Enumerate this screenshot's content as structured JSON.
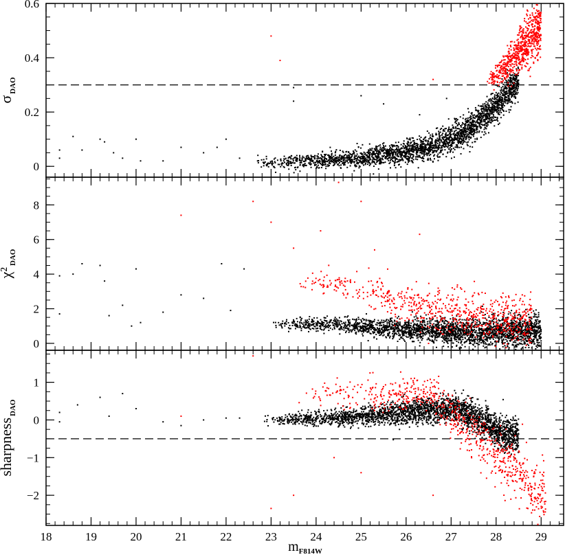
{
  "chart_data": [
    {
      "type": "scatter",
      "panel": "top",
      "ylabel": {
        "symbol": "σ",
        "subscript": "DAO"
      },
      "ylim": [
        -0.04,
        0.6
      ],
      "yticks": [
        "0",
        "0.2",
        "0.4",
        "0.6"
      ],
      "threshold": {
        "y": 0.3,
        "style": "dashed"
      },
      "series": [
        {
          "color": "#000000",
          "points": [
            [
              18.3,
              0.06
            ],
            [
              18.3,
              0.03
            ],
            [
              18.6,
              0.11
            ],
            [
              18.8,
              0.06
            ],
            [
              19.2,
              0.1
            ],
            [
              19.3,
              0.09
            ],
            [
              19.5,
              0.05
            ],
            [
              19.7,
              0.03
            ],
            [
              20.0,
              0.1
            ],
            [
              20.1,
              0.02
            ],
            [
              20.6,
              0.02
            ],
            [
              21.0,
              0.07
            ],
            [
              21.5,
              0.05
            ],
            [
              21.8,
              0.07
            ],
            [
              22.0,
              0.1
            ],
            [
              22.3,
              0.03
            ],
            [
              22.7,
              0.02
            ],
            [
              23.5,
              0.29
            ],
            [
              23.5,
              0.24
            ],
            [
              24.2,
              0.03
            ],
            [
              25.0,
              0.26
            ],
            [
              25.5,
              0.23
            ],
            [
              26.3,
              0.19
            ],
            [
              26.9,
              0.25
            ]
          ],
          "cloud": [
            {
              "x": 23.0,
              "y": 0.015
            },
            {
              "x": 24.0,
              "y": 0.02
            },
            {
              "x": 25.0,
              "y": 0.03
            },
            {
              "x": 25.8,
              "y": 0.045
            },
            {
              "x": 26.5,
              "y": 0.07
            },
            {
              "x": 27.0,
              "y": 0.1
            },
            {
              "x": 27.5,
              "y": 0.15
            },
            {
              "x": 28.0,
              "y": 0.22
            },
            {
              "x": 28.4,
              "y": 0.3
            }
          ],
          "range": [
            22.6,
            28.5
          ]
        },
        {
          "color": "#ff0000",
          "points": [
            [
              23.0,
              0.48
            ],
            [
              23.2,
              0.39
            ],
            [
              26.6,
              0.32
            ]
          ],
          "cloud": [
            {
              "x": 27.9,
              "y": 0.32
            },
            {
              "x": 28.2,
              "y": 0.36
            },
            {
              "x": 28.5,
              "y": 0.42
            },
            {
              "x": 28.8,
              "y": 0.48
            },
            {
              "x": 29.0,
              "y": 0.52
            }
          ],
          "range": [
            27.8,
            29.0
          ]
        }
      ]
    },
    {
      "type": "scatter",
      "panel": "middle",
      "ylabel": {
        "symbol": "χ²",
        "subscript": "DAO"
      },
      "ylim": [
        -0.4,
        9.6
      ],
      "yticks": [
        "0",
        "2",
        "4",
        "6",
        "8"
      ],
      "series": [
        {
          "color": "#000000",
          "points": [
            [
              18.3,
              3.9
            ],
            [
              18.3,
              1.7
            ],
            [
              18.6,
              4.0
            ],
            [
              18.8,
              4.6
            ],
            [
              19.2,
              4.5
            ],
            [
              19.3,
              3.6
            ],
            [
              19.4,
              1.6
            ],
            [
              19.7,
              2.2
            ],
            [
              19.9,
              1.0
            ],
            [
              20.0,
              4.3
            ],
            [
              20.1,
              1.2
            ],
            [
              20.6,
              1.8
            ],
            [
              21.0,
              2.8
            ],
            [
              21.5,
              2.6
            ],
            [
              21.9,
              4.6
            ],
            [
              22.1,
              1.9
            ],
            [
              22.4,
              4.3
            ]
          ],
          "cloud": [
            {
              "x": 24.5,
              "y": 1.1
            },
            {
              "x": 25.5,
              "y": 0.9
            },
            {
              "x": 26.5,
              "y": 0.7
            },
            {
              "x": 27.5,
              "y": 0.6
            },
            {
              "x": 28.5,
              "y": 0.7
            }
          ],
          "range": [
            23.0,
            29.0
          ]
        },
        {
          "color": "#ff0000",
          "points": [
            [
              21.0,
              7.4
            ],
            [
              22.6,
              8.2
            ],
            [
              23.0,
              7.0
            ],
            [
              24.5,
              9.3
            ],
            [
              25.0,
              8.2
            ],
            [
              25.3,
              5.4
            ],
            [
              26.3,
              6.3
            ],
            [
              24.1,
              6.5
            ],
            [
              23.5,
              5.5
            ]
          ],
          "cloud": [
            {
              "x": 24.5,
              "y": 3.5
            },
            {
              "x": 25.5,
              "y": 2.6
            },
            {
              "x": 26.5,
              "y": 2.0
            },
            {
              "x": 27.5,
              "y": 1.6
            },
            {
              "x": 28.5,
              "y": 1.3
            }
          ],
          "range": [
            23.5,
            28.8
          ]
        }
      ]
    },
    {
      "type": "scatter",
      "panel": "bottom",
      "ylabel": {
        "symbol": "sharpness",
        "subscript": "DAO"
      },
      "xlabel": {
        "symbol": "m",
        "subscript": "F814W"
      },
      "ylim": [
        -2.8,
        1.85
      ],
      "yticks": [
        "1",
        "0",
        "−1",
        "−2"
      ],
      "xlim": [
        18,
        29.5
      ],
      "xticks": [
        "18",
        "19",
        "20",
        "21",
        "22",
        "23",
        "24",
        "25",
        "26",
        "27",
        "28",
        "29"
      ],
      "threshold": {
        "y": -0.5,
        "style": "dashed"
      },
      "series": [
        {
          "color": "#000000",
          "points": [
            [
              18.3,
              0.2
            ],
            [
              18.3,
              -0.05
            ],
            [
              18.7,
              0.4
            ],
            [
              19.2,
              0.6
            ],
            [
              19.4,
              0.1
            ],
            [
              19.7,
              0.7
            ],
            [
              20.0,
              0.3
            ],
            [
              20.6,
              -0.05
            ],
            [
              21.0,
              -0.15
            ],
            [
              21.5,
              0.0
            ],
            [
              22.0,
              0.05
            ],
            [
              22.3,
              0.05
            ]
          ],
          "cloud": [
            {
              "x": 23.5,
              "y": 0.0
            },
            {
              "x": 24.5,
              "y": 0.05
            },
            {
              "x": 25.5,
              "y": 0.15
            },
            {
              "x": 26.5,
              "y": 0.25
            },
            {
              "x": 27.2,
              "y": 0.3
            },
            {
              "x": 27.8,
              "y": -0.1
            },
            {
              "x": 28.2,
              "y": -0.4
            }
          ],
          "range": [
            22.8,
            28.5
          ]
        },
        {
          "color": "#ff0000",
          "points": [
            [
              21.0,
              0.1
            ],
            [
              22.6,
              1.7
            ],
            [
              23.0,
              -2.35
            ],
            [
              23.5,
              -2.0
            ],
            [
              24.4,
              -1.0
            ],
            [
              25.0,
              -1.4
            ],
            [
              26.6,
              -2.0
            ]
          ],
          "cloud": [
            {
              "x": 24.5,
              "y": 0.7
            },
            {
              "x": 25.5,
              "y": 0.65
            },
            {
              "x": 26.5,
              "y": 0.7
            },
            {
              "x": 28.0,
              "y": -0.9
            },
            {
              "x": 28.5,
              "y": -1.4
            },
            {
              "x": 28.9,
              "y": -2.0
            }
          ],
          "range": [
            23.5,
            29.1
          ]
        }
      ]
    }
  ]
}
